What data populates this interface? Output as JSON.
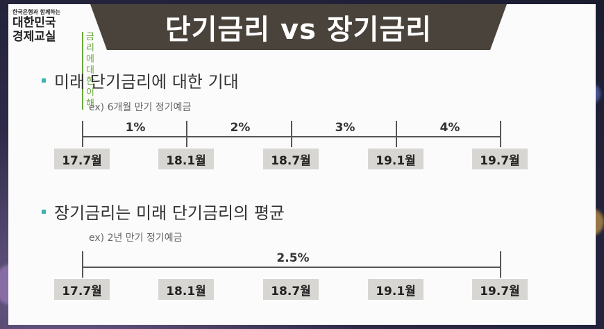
{
  "title": "단기금리 vs 장기금리",
  "logo": {
    "small": "한국은행과 함께하는",
    "big_line1": "대한민국",
    "big_line2": "경제교실",
    "sub_line1": "금리에 대한",
    "sub_line2": "이해"
  },
  "section1": {
    "bullet": "미래 단기금리에 대한 기대",
    "example": "ex) 6개월 만기 정기예금",
    "rates": [
      "1%",
      "2%",
      "3%",
      "4%"
    ],
    "dates": [
      "17.7월",
      "18.1월",
      "18.7월",
      "19.1월",
      "19.7월"
    ]
  },
  "section2": {
    "bullet": "장기금리는 미래 단기금리의 평균",
    "example": "ex) 2년 만기 정기예금",
    "rate": "2.5%",
    "dates": [
      "17.7월",
      "18.1월",
      "18.7월",
      "19.1월",
      "19.7월"
    ]
  },
  "colors": {
    "title_bar": "#4a433b",
    "bullet_accent": "#3bb3b3",
    "date_box": "#d8d6d2",
    "logo_accent": "#6aa63b"
  }
}
